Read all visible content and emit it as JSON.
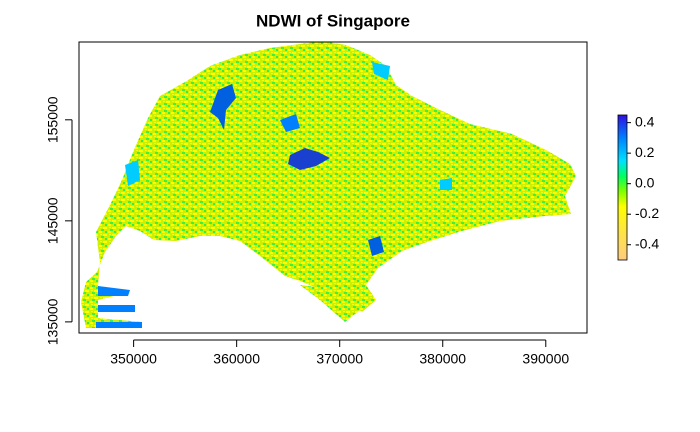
{
  "chart_data": {
    "type": "raster",
    "title": "NDWI of Singapore",
    "xlim": [
      344700,
      394000
    ],
    "ylim": [
      133900,
      162700
    ],
    "xticks": [
      350000,
      360000,
      370000,
      380000,
      390000
    ],
    "yticks": [
      135000,
      145000,
      155000
    ],
    "legend": {
      "lim": [
        -0.5,
        0.45
      ],
      "ticks": [
        -0.4,
        -0.2,
        {
          "value": 0,
          "label": "0.0"
        },
        0.2,
        0.4
      ],
      "colors": [
        {
          "value": -0.5,
          "color": "#ffcc80"
        },
        {
          "value": -0.3,
          "color": "#ffe640"
        },
        {
          "value": -0.15,
          "color": "#ffff00"
        },
        {
          "value": -0.05,
          "color": "#7fff00"
        },
        {
          "value": 0.05,
          "color": "#00ff60"
        },
        {
          "value": 0.15,
          "color": "#00e0ff"
        },
        {
          "value": 0.3,
          "color": "#0080ff"
        },
        {
          "value": 0.45,
          "color": "#3010e0"
        }
      ]
    }
  }
}
